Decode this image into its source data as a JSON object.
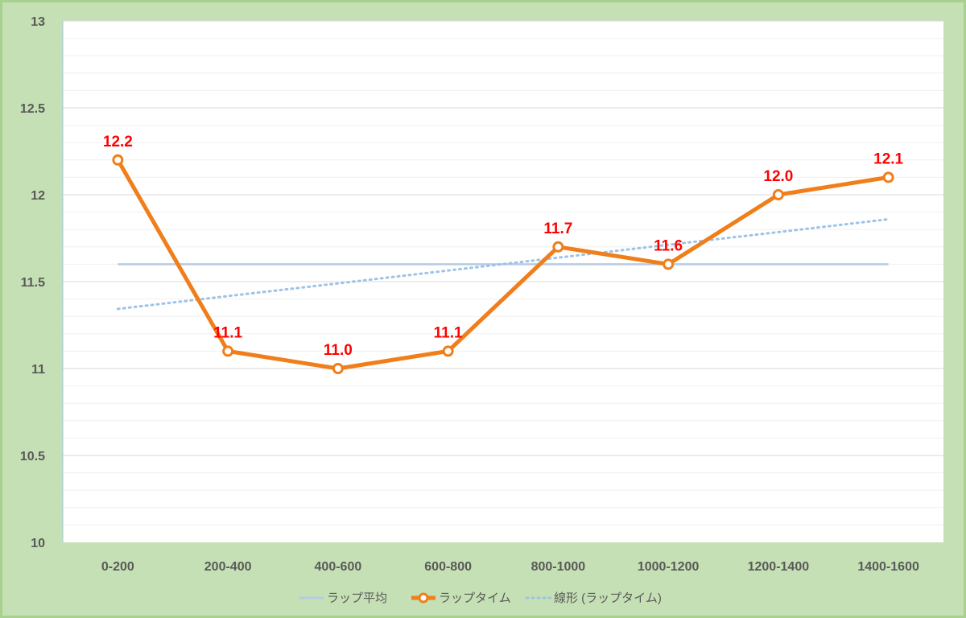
{
  "chart_data": {
    "type": "line",
    "categories": [
      "0-200",
      "200-400",
      "400-600",
      "600-800",
      "800-1000",
      "1000-1200",
      "1200-1400",
      "1400-1600"
    ],
    "series": [
      {
        "name": "ラップ平均",
        "values": [
          11.6,
          11.6,
          11.6,
          11.6,
          11.6,
          11.6,
          11.6,
          11.6
        ],
        "color": "#b4cbe4",
        "style": "solid"
      },
      {
        "name": "ラップタイム",
        "values": [
          12.2,
          11.1,
          11.0,
          11.1,
          11.7,
          11.6,
          12.0,
          12.1
        ],
        "data_labels": [
          "12.2",
          "11.1",
          "11.0",
          "11.1",
          "11.7",
          "11.6",
          "12.0",
          "12.1"
        ],
        "color": "#f07e1a",
        "marker": "circle",
        "style": "solid"
      },
      {
        "name": "線形 (ラップタイム)",
        "values": [
          11.343,
          11.417,
          11.49,
          11.564,
          11.638,
          11.712,
          11.785,
          11.859
        ],
        "color": "#9dc3e6",
        "style": "dotted"
      }
    ],
    "y_ticks": [
      "10",
      "10.5",
      "11",
      "11.5",
      "12",
      "12.5",
      "13"
    ],
    "ylim": [
      10,
      13
    ],
    "grid": true,
    "data_label_color": "#ff0000",
    "legend_position": "bottom"
  }
}
